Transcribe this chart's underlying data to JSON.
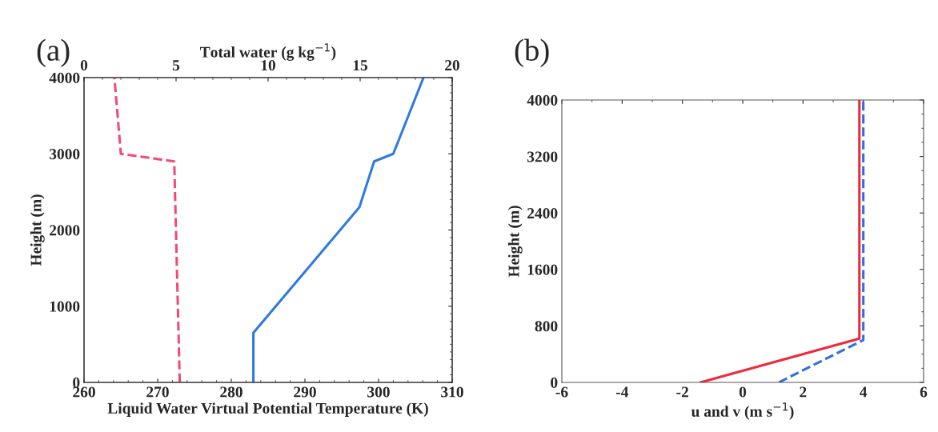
{
  "chart_data": [
    {
      "type": "line",
      "title": "(a)",
      "xlabel": "Liquid Water Virtual Potential Temperature (K)",
      "ylabel": "Height (m)",
      "x2label": "Total water (g kg$^{−1}$)",
      "xlim": [
        260,
        310
      ],
      "xticks": [
        260,
        270,
        280,
        290,
        300,
        310
      ],
      "x2lim": [
        0,
        20
      ],
      "x2ticks": [
        0,
        5,
        10,
        15,
        20
      ],
      "ylim": [
        0,
        4000
      ],
      "yticks": [
        0,
        1000,
        2000,
        3000,
        4000
      ],
      "grid": false,
      "legend": false,
      "series": [
        {
          "color": "#2f7ae0",
          "line_style": "solid",
          "x": [
            283,
            283,
            297.4,
            299.4,
            302,
            306.1
          ],
          "values": [
            0,
            650,
            2300,
            2900,
            3000,
            4000
          ]
        },
        {
          "color": "#f04a78",
          "line_style": "dashed",
          "axis": "x2",
          "x": [
            5.2,
            4.9,
            2.0,
            1.65
          ],
          "values": [
            0,
            2900,
            3000,
            4000
          ]
        }
      ]
    },
    {
      "type": "line",
      "title": "(b)",
      "xlabel": "u and v (m s$^{−1}$)",
      "ylabel": "Height (m)",
      "xlim": [
        -6,
        6
      ],
      "xticks": [
        -6,
        -4,
        -2,
        0,
        2,
        4,
        6
      ],
      "ylim": [
        0,
        4000
      ],
      "yticks": [
        0,
        800,
        1600,
        2400,
        3200,
        4000
      ],
      "grid": false,
      "legend": false,
      "series": [
        {
          "color": "#2f6fe0",
          "line_style": "dashed",
          "x": [
            1.2,
            4.0,
            4.0
          ],
          "values": [
            0,
            600,
            4000
          ]
        },
        {
          "color": "#f0283c",
          "line_style": "solid",
          "x": [
            -1.4,
            3.87,
            3.87
          ],
          "values": [
            0,
            620,
            4000
          ]
        }
      ]
    }
  ]
}
